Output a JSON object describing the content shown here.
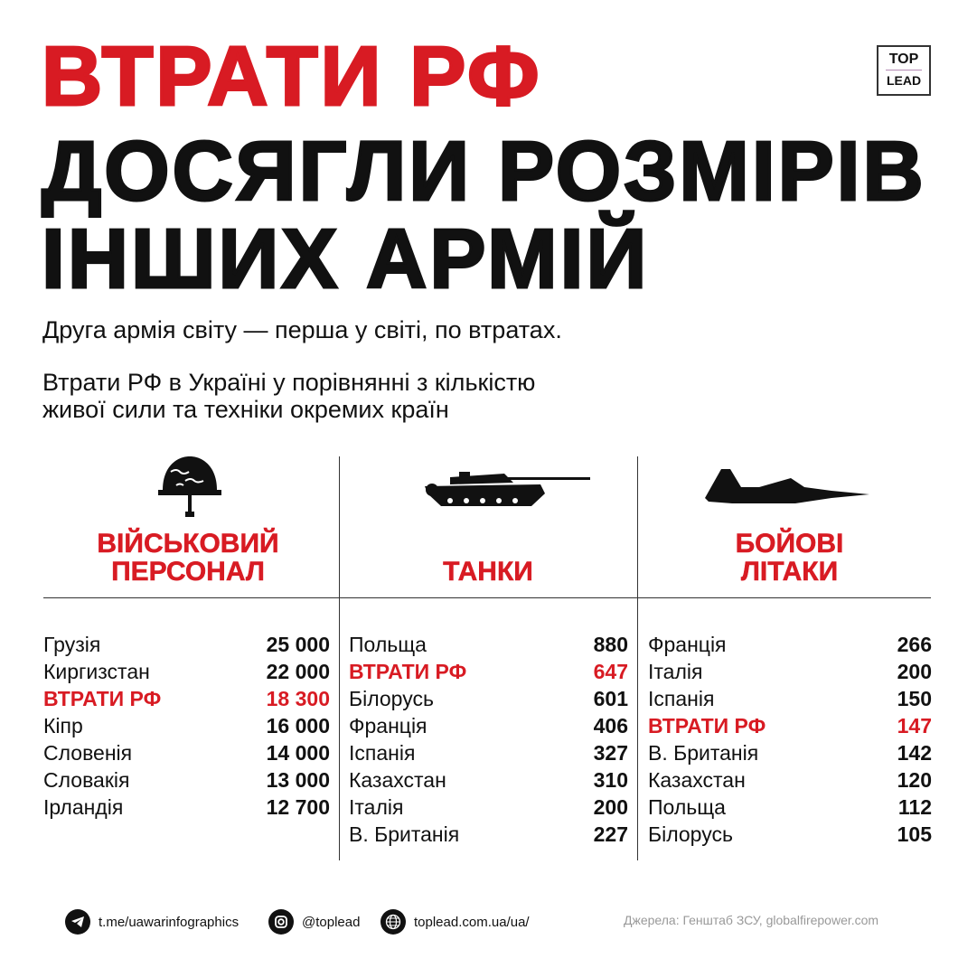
{
  "title": {
    "line1": "ВТРАТИ РФ",
    "line2": "ДОСЯГЛИ РОЗМІРІВ",
    "line3": "ІНШИХ АРМІЙ"
  },
  "logo": {
    "top": "TOP",
    "bottom": "LEAD"
  },
  "subtitle1": "Друга армія світу — перша у світі, по втратах.",
  "subtitle2": {
    "line1": "Втрати РФ в Україні у порівнянні з кількістю",
    "line2": "живої сили та техніки окремих країн"
  },
  "colors": {
    "accent": "#d81b23"
  },
  "columns": [
    {
      "icon": "helmet-icon",
      "title1": "ВІЙСЬКОВИЙ",
      "title2": "ПЕРСОНАЛ",
      "rows": [
        {
          "name": "Грузія",
          "value": "25 000"
        },
        {
          "name": "Киргизстан",
          "value": "22 000"
        },
        {
          "name": "ВТРАТИ РФ",
          "value": "18 300",
          "highlight": true
        },
        {
          "name": "Кіпр",
          "value": "16 000"
        },
        {
          "name": "Словенія",
          "value": "14 000"
        },
        {
          "name": "Словакія",
          "value": "13 000"
        },
        {
          "name": "Ірландія",
          "value": "12 700"
        }
      ]
    },
    {
      "icon": "tank-icon",
      "title1": "",
      "title2": "ТАНКИ",
      "rows": [
        {
          "name": "Польща",
          "value": "880"
        },
        {
          "name": "ВТРАТИ РФ",
          "value": "647",
          "highlight": true
        },
        {
          "name": "Білорусь",
          "value": "601"
        },
        {
          "name": "Франція",
          "value": "406"
        },
        {
          "name": "Іспанія",
          "value": "327"
        },
        {
          "name": "Казахстан",
          "value": "310"
        },
        {
          "name": "Італія",
          "value": "200"
        },
        {
          "name": "В. Британія",
          "value": "227"
        }
      ]
    },
    {
      "icon": "fighter-jet-icon",
      "title1": "БОЙОВІ",
      "title2": "ЛІТАКИ",
      "rows": [
        {
          "name": "Франція",
          "value": "266"
        },
        {
          "name": "Італія",
          "value": "200"
        },
        {
          "name": "Іспанія",
          "value": "150"
        },
        {
          "name": "ВТРАТИ РФ",
          "value": "147",
          "highlight": true
        },
        {
          "name": "В. Британія",
          "value": "142"
        },
        {
          "name": "Казахстан",
          "value": "120"
        },
        {
          "name": "Польща",
          "value": "112"
        },
        {
          "name": "Білорусь",
          "value": "105"
        }
      ]
    }
  ],
  "footer": {
    "telegram": "t.me/uawarinfographics",
    "instagram": "@toplead",
    "website": "toplead.com.ua/ua/",
    "source": "Джерела: Генштаб ЗСУ, globalfirepower.com"
  }
}
